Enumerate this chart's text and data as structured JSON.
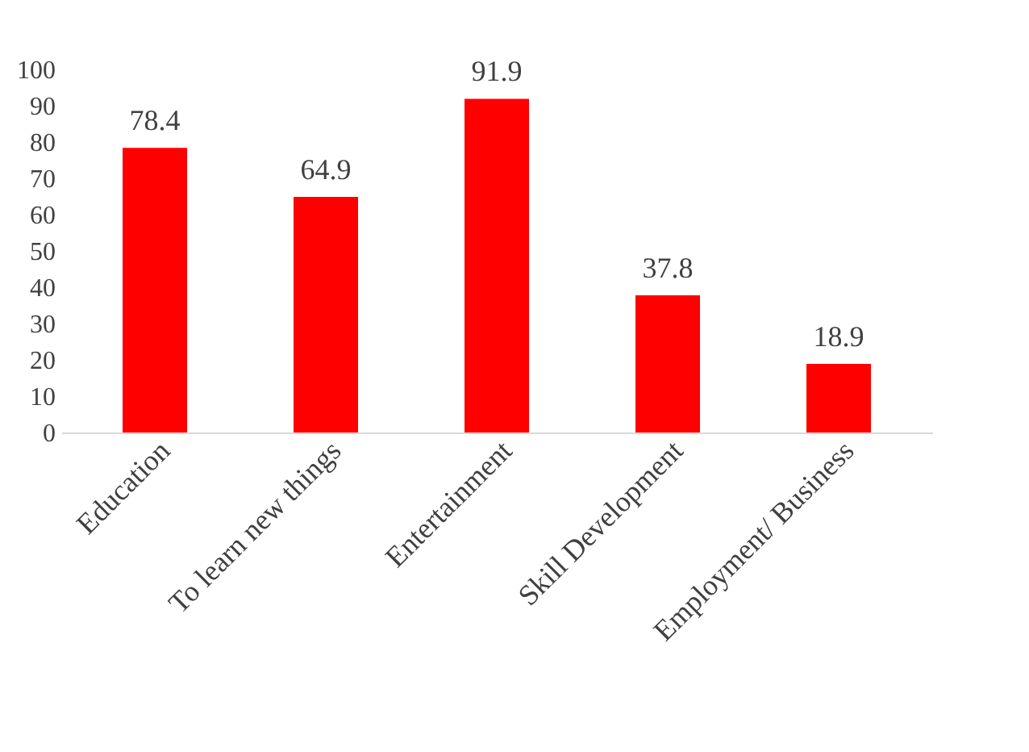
{
  "chart_data": {
    "type": "bar",
    "categories": [
      "Education",
      "To learn new things",
      "Entertainment",
      "Skill Development",
      "Employment/ Business"
    ],
    "values": [
      78.4,
      64.9,
      91.9,
      37.8,
      18.9
    ],
    "color": "#ff0000",
    "ylim": [
      0,
      100
    ],
    "yticks": [
      0,
      10,
      20,
      30,
      40,
      50,
      60,
      70,
      80,
      90,
      100
    ],
    "data_labels": true,
    "grid": false
  }
}
